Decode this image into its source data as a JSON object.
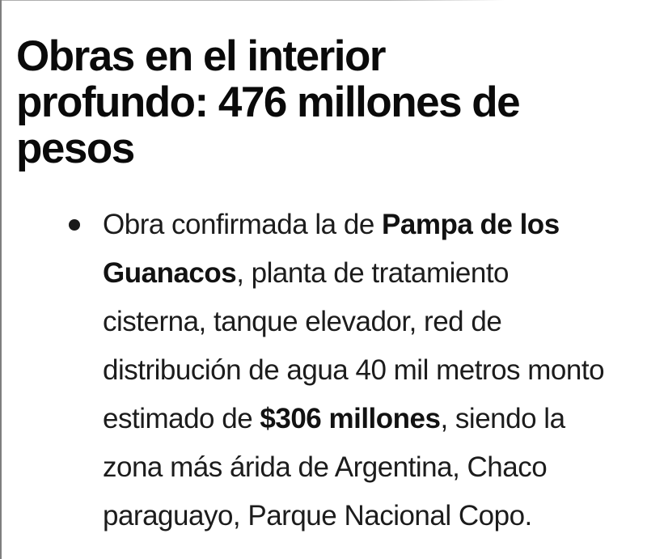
{
  "page": {
    "background": "#ffffff",
    "edge_left_color": "#7e7e7e",
    "edge_top_color": "#b4b4b4"
  },
  "colors": {
    "heading_text": "#0a0a0a",
    "body_text": "#1c1c1c"
  },
  "article": {
    "heading": {
      "full_text": "Obras en el interior profundo: 476 millones de pesos",
      "lines": [
        "Obras en el interior",
        "profundo: 476 millones de",
        "pesos"
      ]
    },
    "bullets": [
      {
        "marker_icon": "bullet-dot-icon",
        "full_text": "Obra confirmada la de Pampa de los Guanacos, planta de tratamiento cisterna, tanque elevador, red de distribución de agua 40 mil metros monto estimado de $306 millones, siendo la zona más árida de Argentina, Chaco paraguayo, Parque Nacional Copo.",
        "lines": [
          {
            "segments": [
              {
                "text": "Obra confirmada la de ",
                "bold": false
              },
              {
                "text": "Pampa de los",
                "bold": true
              }
            ]
          },
          {
            "segments": [
              {
                "text": "Guanacos",
                "bold": true
              },
              {
                "text": ", planta de tratamiento",
                "bold": false
              }
            ]
          },
          {
            "segments": [
              {
                "text": "cisterna, tanque elevador, red de",
                "bold": false
              }
            ]
          },
          {
            "segments": [
              {
                "text": "distribución de agua 40 mil metros monto",
                "bold": false
              }
            ]
          },
          {
            "segments": [
              {
                "text": "estimado de ",
                "bold": false
              },
              {
                "text": "$306 millones",
                "bold": true
              },
              {
                "text": ", siendo la",
                "bold": false
              }
            ]
          },
          {
            "segments": [
              {
                "text": "zona más árida de Argentina, Chaco",
                "bold": false
              }
            ]
          },
          {
            "segments": [
              {
                "text": "paraguayo, Parque Nacional Copo.",
                "bold": false
              }
            ]
          }
        ]
      }
    ]
  }
}
